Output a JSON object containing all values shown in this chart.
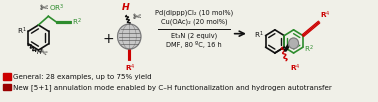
{
  "bg_color": "#f0f0e8",
  "legend1_color": "#cc0000",
  "legend2_color": "#990000",
  "legend1_text": "General: 28 examples, up to 75% yield",
  "legend2_text": "New [5+1] annulation mode enabled by C–H functionalization and hydrogen autotransfer",
  "conditions_line1": "Pd(dippp)Cl₂ (10 mol%)",
  "conditions_line2": "Cu(OAc)₂ (20 mol%)",
  "conditions_line3": "Et₃N (2 equiv)",
  "conditions_line4": "DMF, 80 ºC, 16 h",
  "green": "#2d8c2d",
  "red": "#cc0000",
  "black": "#111111",
  "dark_gray": "#444444",
  "gray": "#888888",
  "light_gray": "#bbbbbb",
  "font_size_cond": 4.8,
  "font_size_label": 5.2,
  "font_size_legend": 5.1
}
